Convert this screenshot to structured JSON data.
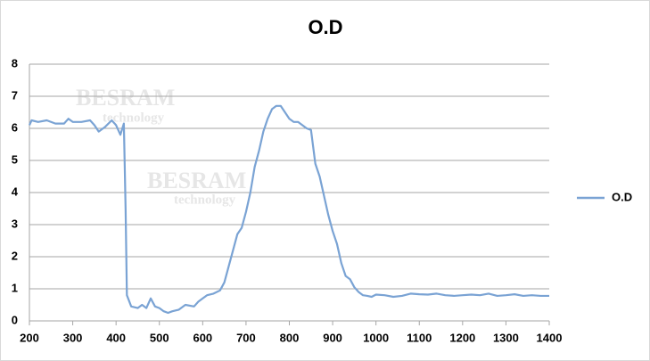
{
  "chart_data": {
    "type": "line",
    "title": "O.D",
    "watermark": [
      "BESRAM",
      "technology",
      "BESRAM",
      "technology"
    ],
    "x": [
      200,
      205,
      220,
      240,
      260,
      280,
      290,
      300,
      320,
      340,
      350,
      360,
      375,
      390,
      400,
      410,
      418,
      422,
      425,
      435,
      450,
      460,
      470,
      480,
      490,
      500,
      510,
      520,
      530,
      545,
      560,
      580,
      590,
      600,
      610,
      625,
      640,
      650,
      660,
      670,
      680,
      690,
      700,
      710,
      720,
      730,
      740,
      750,
      760,
      770,
      780,
      790,
      800,
      810,
      820,
      830,
      840,
      850,
      860,
      870,
      880,
      890,
      900,
      910,
      920,
      930,
      940,
      950,
      960,
      970,
      980,
      990,
      1000,
      1020,
      1040,
      1060,
      1080,
      1100,
      1120,
      1140,
      1160,
      1180,
      1200,
      1220,
      1240,
      1260,
      1280,
      1300,
      1320,
      1340,
      1360,
      1380,
      1400
    ],
    "series": [
      {
        "name": "O.D",
        "color": "#7aa3d4",
        "values": [
          6.1,
          6.25,
          6.2,
          6.25,
          6.15,
          6.15,
          6.3,
          6.2,
          6.2,
          6.25,
          6.1,
          5.9,
          6.05,
          6.25,
          6.1,
          5.8,
          6.15,
          3.5,
          0.8,
          0.45,
          0.4,
          0.5,
          0.4,
          0.7,
          0.45,
          0.4,
          0.3,
          0.25,
          0.3,
          0.35,
          0.5,
          0.45,
          0.6,
          0.7,
          0.8,
          0.85,
          0.95,
          1.2,
          1.7,
          2.2,
          2.7,
          2.9,
          3.4,
          4.0,
          4.8,
          5.3,
          5.9,
          6.3,
          6.6,
          6.7,
          6.7,
          6.5,
          6.3,
          6.2,
          6.2,
          6.1,
          6.0,
          5.95,
          4.9,
          4.5,
          3.9,
          3.3,
          2.8,
          2.4,
          1.8,
          1.4,
          1.3,
          1.05,
          0.9,
          0.8,
          0.78,
          0.75,
          0.82,
          0.8,
          0.75,
          0.78,
          0.85,
          0.83,
          0.82,
          0.85,
          0.8,
          0.78,
          0.8,
          0.82,
          0.8,
          0.85,
          0.78,
          0.8,
          0.83,
          0.78,
          0.8,
          0.78,
          0.78
        ]
      }
    ],
    "xlim": [
      200,
      1400
    ],
    "xticks": [
      200,
      300,
      400,
      500,
      600,
      700,
      800,
      900,
      1000,
      1100,
      1200,
      1300,
      1400
    ],
    "ylim": [
      0,
      8
    ],
    "yticks": [
      0,
      1,
      2,
      3,
      4,
      5,
      6,
      7,
      8
    ],
    "grid": true,
    "legend": "right"
  }
}
